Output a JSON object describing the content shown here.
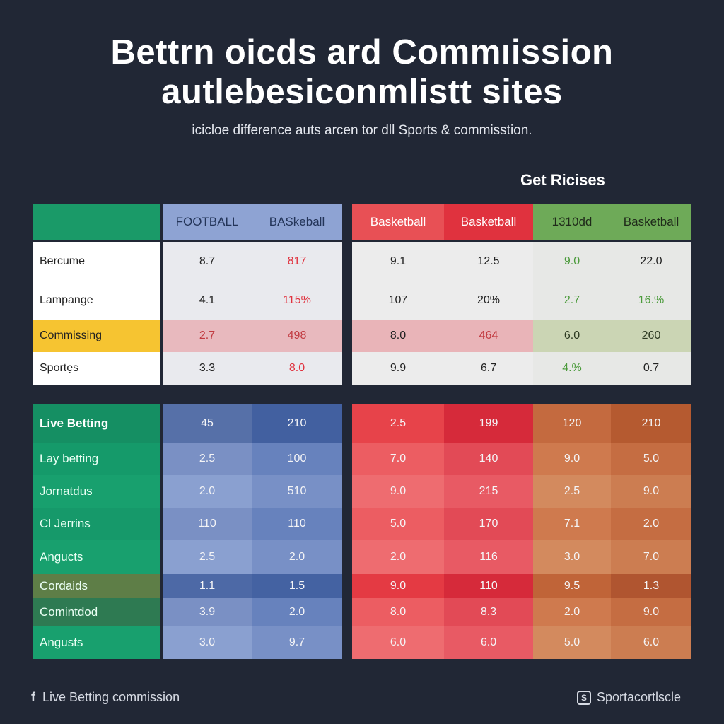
{
  "title": {
    "line1": "Bettrn oicds ard Commıission",
    "line2": "autlebesiconmlistt sites"
  },
  "subtitle": "icicloe difference auts arcen tor dll Sports & commisstion.",
  "get_prices": "Get Ricises",
  "top_table": {
    "headers": [
      "",
      "FOOTBALL",
      "BASkeball",
      "Basketball",
      "Basketball",
      "1310dd",
      "Basketball"
    ],
    "rows": [
      {
        "label": "Bercume",
        "values": [
          "8.7",
          "817",
          "9.1",
          "12.5",
          "9.0",
          "22.0"
        ]
      },
      {
        "label": "Lampange",
        "values": [
          "4.1",
          "115%",
          "107",
          "20%",
          "2.7",
          "16.%"
        ]
      },
      {
        "label": "Commissing",
        "values": [
          "2.7",
          "498",
          "8.0",
          "464",
          "6.0",
          "260"
        ]
      },
      {
        "label": "Sportẹs",
        "values": [
          "3.3",
          "8.0",
          "9.9",
          "6.7",
          "4.%",
          "0.7"
        ]
      }
    ]
  },
  "bottom_table": {
    "rows": [
      {
        "label": "Live Betting",
        "values": [
          "45",
          "210",
          "2.5",
          "199",
          "120",
          "210"
        ]
      },
      {
        "label": "Lay betting",
        "values": [
          "2.5",
          "100",
          "7.0",
          "140",
          "9.0",
          "5.0"
        ]
      },
      {
        "label": "Jornatdus",
        "values": [
          "2.0",
          "510",
          "9.0",
          "215",
          "2.5",
          "9.0"
        ]
      },
      {
        "label": "Cl Jerrins",
        "values": [
          "110",
          "110",
          "5.0",
          "170",
          "7.1",
          "2.0"
        ]
      },
      {
        "label": "Angucts",
        "values": [
          "2.5",
          "2.0",
          "2.0",
          "116",
          "3.0",
          "7.0"
        ]
      },
      {
        "label": "Cordaids",
        "values": [
          "1.1",
          "1.5",
          "9.0",
          "110",
          "9.5",
          "1.3"
        ]
      },
      {
        "label": "Comintdod",
        "values": [
          "3.9",
          "2.0",
          "8.0",
          "8.3",
          "2.0",
          "9.0"
        ]
      },
      {
        "label": "Angusts",
        "values": [
          "3.0",
          "9.7",
          "6.0",
          "6.0",
          "5.0",
          "6.0"
        ]
      }
    ]
  },
  "footer": {
    "left_icon": "facebook-icon",
    "left_text": "Live Betting commission",
    "right_icon": "brand-icon",
    "right_text": "Sportacortlscle"
  },
  "colors": {
    "background": "#212735",
    "green": "#1a9a68",
    "blue": "#8ea3d3",
    "red": "#e85055",
    "olive": "#6eaa58",
    "highlight_yellow": "#f6c431"
  }
}
